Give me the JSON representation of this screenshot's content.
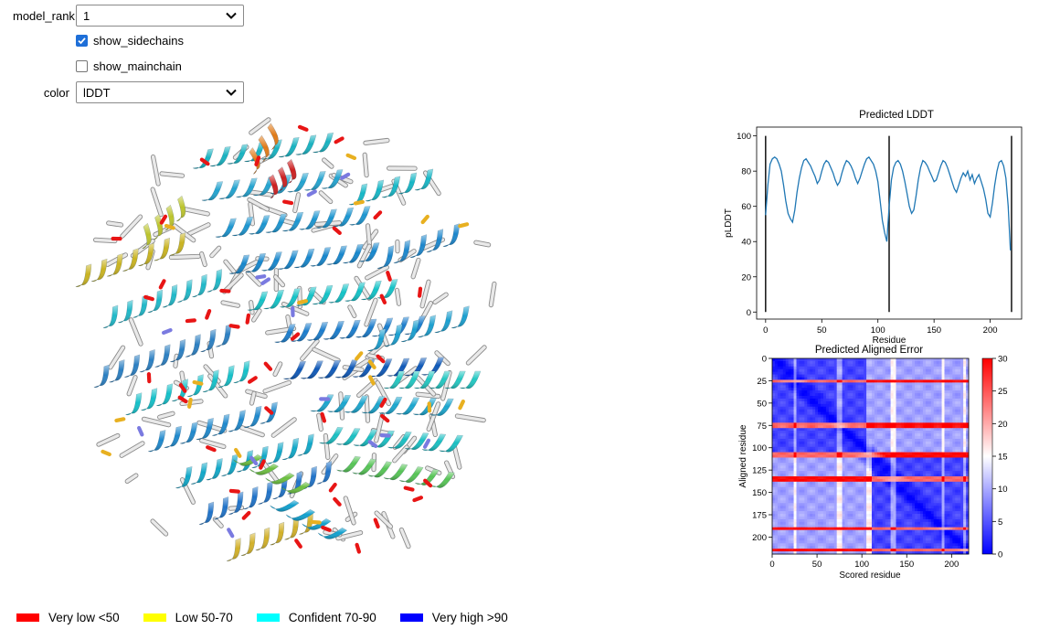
{
  "controls": {
    "model_rank_label": "model_rank",
    "model_rank_value": "1",
    "show_sidechains_label": "show_sidechains",
    "show_sidechains_checked": true,
    "show_mainchain_label": "show_mainchain",
    "show_mainchain_checked": false,
    "color_label": "color",
    "color_value": "lDDT"
  },
  "legend": [
    {
      "label": "Very low <50",
      "color": "#ff0000"
    },
    {
      "label": "Low 50-70",
      "color": "#ffff00"
    },
    {
      "label": "Confident 70-90",
      "color": "#00ffff"
    },
    {
      "label": "Very high >90",
      "color": "#0000ff"
    }
  ],
  "chart_data": [
    {
      "type": "line",
      "title": "Predicted LDDT",
      "xlabel": "Residue",
      "ylabel": "pLDDT",
      "xlim": [
        -8,
        228
      ],
      "ylim": [
        -4,
        105
      ],
      "xticks": [
        0,
        50,
        100,
        150,
        200
      ],
      "yticks": [
        0,
        20,
        40,
        60,
        80,
        100
      ],
      "vlines": [
        0,
        110,
        219
      ],
      "vline_range": [
        0,
        100
      ],
      "series": [
        {
          "color": "#1f77b4",
          "x": [
            0,
            2,
            4,
            6,
            8,
            10,
            12,
            14,
            16,
            18,
            20,
            22,
            24,
            26,
            28,
            30,
            32,
            34,
            36,
            38,
            40,
            42,
            44,
            46,
            48,
            50,
            52,
            54,
            56,
            58,
            60,
            62,
            64,
            66,
            68,
            70,
            72,
            74,
            76,
            78,
            80,
            82,
            84,
            86,
            88,
            90,
            92,
            94,
            96,
            98,
            100,
            102,
            104,
            106,
            108,
            110,
            112,
            114,
            116,
            118,
            120,
            122,
            124,
            126,
            128,
            130,
            132,
            134,
            136,
            138,
            140,
            142,
            144,
            146,
            148,
            150,
            152,
            154,
            156,
            158,
            160,
            162,
            164,
            166,
            168,
            170,
            172,
            174,
            176,
            178,
            180,
            182,
            184,
            186,
            188,
            190,
            192,
            194,
            196,
            198,
            200,
            202,
            204,
            206,
            208,
            210,
            212,
            214,
            216,
            218
          ],
          "y": [
            55,
            72,
            84,
            87,
            88,
            87,
            84,
            80,
            72,
            63,
            56,
            53,
            51,
            58,
            68,
            76,
            82,
            86,
            87,
            85,
            83,
            80,
            77,
            73,
            75,
            80,
            84,
            86,
            85,
            82,
            79,
            75,
            72,
            74,
            79,
            83,
            86,
            85,
            83,
            80,
            76,
            73,
            76,
            80,
            84,
            87,
            88,
            86,
            84,
            80,
            74,
            63,
            52,
            45,
            40,
            60,
            75,
            82,
            85,
            86,
            84,
            80,
            74,
            67,
            60,
            56,
            58,
            66,
            75,
            82,
            86,
            85,
            83,
            80,
            77,
            74,
            75,
            79,
            83,
            86,
            85,
            82,
            78,
            74,
            70,
            68,
            72,
            76,
            79,
            77,
            80,
            75,
            78,
            73,
            76,
            78,
            74,
            70,
            64,
            56,
            54,
            62,
            72,
            80,
            85,
            86,
            83,
            76,
            60,
            35
          ]
        }
      ]
    },
    {
      "type": "heatmap",
      "title": "Predicted Aligned Error",
      "xlabel": "Scored residue",
      "ylabel": "Aligned residue",
      "xlim": [
        0,
        219
      ],
      "ylim": [
        219,
        0
      ],
      "xticks": [
        0,
        50,
        100,
        150,
        200
      ],
      "yticks": [
        0,
        25,
        50,
        75,
        100,
        125,
        150,
        175,
        200
      ],
      "colorbar": {
        "min": 0,
        "max": 30,
        "ticks": [
          0,
          5,
          10,
          15,
          20,
          25,
          30
        ],
        "colormap": "bwr"
      },
      "domains": [
        [
          0,
          110
        ],
        [
          110,
          219
        ]
      ],
      "high_error_residues": [
        25,
        75,
        108,
        135,
        190,
        214
      ],
      "values_summary": "diagonal ~0; within-domain ~3-6; between-domain ~8-12; bands at high_error_residues ~20-30"
    }
  ]
}
